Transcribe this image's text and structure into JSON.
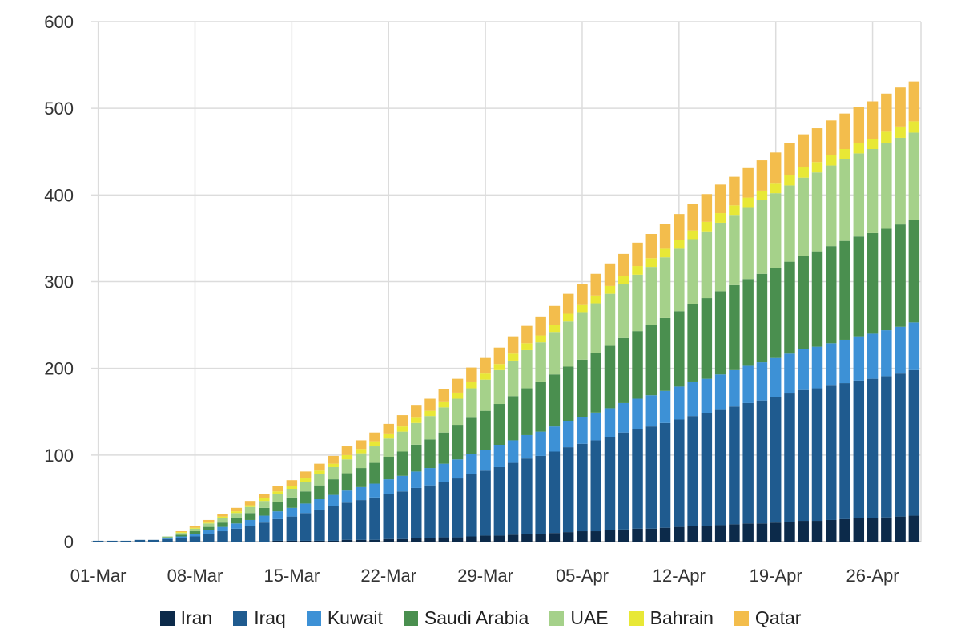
{
  "chart_data": {
    "type": "bar",
    "stacked": true,
    "title": "",
    "xlabel": "",
    "ylabel": "",
    "ylim": [
      0,
      600
    ],
    "yticks": [
      0,
      100,
      200,
      300,
      400,
      500,
      600
    ],
    "grid": true,
    "legend_position": "bottom",
    "x_tick_labels": [
      "01-Mar",
      "08-Mar",
      "15-Mar",
      "22-Mar",
      "29-Mar",
      "05-Apr",
      "12-Apr",
      "19-Apr",
      "26-Apr"
    ],
    "categories": [
      "01-Mar",
      "02-Mar",
      "03-Mar",
      "04-Mar",
      "05-Mar",
      "06-Mar",
      "07-Mar",
      "08-Mar",
      "09-Mar",
      "10-Mar",
      "11-Mar",
      "12-Mar",
      "13-Mar",
      "14-Mar",
      "15-Mar",
      "16-Mar",
      "17-Mar",
      "18-Mar",
      "19-Mar",
      "20-Mar",
      "21-Mar",
      "22-Mar",
      "23-Mar",
      "24-Mar",
      "25-Mar",
      "26-Mar",
      "27-Mar",
      "28-Mar",
      "29-Mar",
      "30-Mar",
      "31-Mar",
      "01-Apr",
      "02-Apr",
      "03-Apr",
      "04-Apr",
      "05-Apr",
      "06-Apr",
      "07-Apr",
      "08-Apr",
      "09-Apr",
      "10-Apr",
      "11-Apr",
      "12-Apr",
      "13-Apr",
      "14-Apr",
      "15-Apr",
      "16-Apr",
      "17-Apr",
      "18-Apr",
      "19-Apr",
      "20-Apr",
      "21-Apr",
      "22-Apr",
      "23-Apr",
      "24-Apr",
      "25-Apr",
      "26-Apr",
      "27-Apr",
      "28-Apr",
      "29-Apr"
    ],
    "series": [
      {
        "name": "Iran",
        "color": "#0c2a4a",
        "values": [
          0,
          0,
          0,
          0,
          0,
          0,
          0,
          0,
          0,
          0,
          0,
          0,
          0,
          1,
          1,
          1,
          1,
          1,
          2,
          2,
          2,
          3,
          3,
          4,
          4,
          5,
          5,
          6,
          7,
          7,
          8,
          9,
          9,
          10,
          11,
          12,
          12,
          13,
          14,
          15,
          15,
          16,
          17,
          18,
          18,
          19,
          20,
          21,
          21,
          22,
          23,
          24,
          24,
          25,
          26,
          27,
          27,
          28,
          29,
          30
        ]
      },
      {
        "name": "Iraq",
        "color": "#1f5b8f",
        "values": [
          1,
          1,
          1,
          2,
          2,
          3,
          4,
          6,
          9,
          12,
          15,
          18,
          22,
          25,
          28,
          32,
          36,
          40,
          43,
          46,
          49,
          52,
          55,
          58,
          61,
          64,
          68,
          72,
          75,
          79,
          83,
          87,
          90,
          94,
          98,
          101,
          105,
          108,
          112,
          115,
          118,
          121,
          124,
          127,
          130,
          133,
          136,
          139,
          142,
          145,
          148,
          151,
          153,
          155,
          157,
          159,
          161,
          163,
          165,
          168
        ]
      },
      {
        "name": "Kuwait",
        "color": "#3d91d6",
        "values": [
          0,
          0,
          0,
          0,
          0,
          1,
          2,
          3,
          4,
          5,
          6,
          7,
          8,
          9,
          10,
          11,
          12,
          13,
          14,
          15,
          16,
          17,
          18,
          19,
          20,
          21,
          22,
          23,
          24,
          25,
          26,
          27,
          28,
          29,
          30,
          31,
          32,
          33,
          34,
          35,
          36,
          37,
          38,
          39,
          40,
          41,
          42,
          43,
          44,
          45,
          46,
          47,
          48,
          49,
          50,
          51,
          52,
          53,
          54,
          55
        ]
      },
      {
        "name": "Saudi Arabia",
        "color": "#4a8f4f",
        "values": [
          0,
          0,
          0,
          0,
          0,
          1,
          2,
          3,
          4,
          5,
          6,
          8,
          9,
          11,
          12,
          14,
          16,
          18,
          20,
          22,
          24,
          26,
          28,
          31,
          33,
          36,
          39,
          42,
          45,
          48,
          51,
          54,
          57,
          60,
          63,
          66,
          69,
          72,
          75,
          78,
          81,
          84,
          87,
          90,
          93,
          96,
          98,
          100,
          102,
          104,
          106,
          108,
          110,
          112,
          114,
          115,
          116,
          117,
          118,
          118
        ]
      },
      {
        "name": "UAE",
        "color": "#a5d18a",
        "values": [
          0,
          0,
          0,
          0,
          0,
          1,
          2,
          3,
          4,
          5,
          6,
          7,
          8,
          9,
          10,
          11,
          13,
          14,
          16,
          17,
          19,
          21,
          23,
          25,
          27,
          29,
          31,
          34,
          36,
          39,
          41,
          44,
          46,
          49,
          52,
          54,
          57,
          60,
          62,
          65,
          67,
          70,
          72,
          75,
          77,
          79,
          81,
          83,
          85,
          86,
          88,
          90,
          91,
          93,
          94,
          96,
          97,
          99,
          100,
          101
        ]
      },
      {
        "name": "Bahrain",
        "color": "#e8e836",
        "values": [
          0,
          0,
          0,
          0,
          0,
          0,
          1,
          1,
          1,
          2,
          2,
          2,
          3,
          3,
          3,
          4,
          4,
          4,
          5,
          5,
          5,
          5,
          6,
          6,
          6,
          6,
          7,
          7,
          7,
          7,
          8,
          8,
          8,
          8,
          9,
          9,
          9,
          9,
          9,
          10,
          10,
          10,
          10,
          10,
          11,
          11,
          11,
          11,
          11,
          11,
          12,
          12,
          12,
          12,
          12,
          12,
          12,
          13,
          13,
          13
        ]
      },
      {
        "name": "Qatar",
        "color": "#f3bd4c",
        "values": [
          0,
          0,
          0,
          0,
          0,
          0,
          1,
          2,
          3,
          3,
          4,
          5,
          5,
          6,
          7,
          8,
          8,
          9,
          10,
          10,
          11,
          12,
          13,
          14,
          14,
          15,
          16,
          17,
          18,
          19,
          20,
          20,
          21,
          22,
          23,
          24,
          25,
          26,
          26,
          27,
          28,
          29,
          30,
          31,
          32,
          33,
          33,
          34,
          35,
          36,
          37,
          38,
          39,
          40,
          41,
          42,
          43,
          44,
          45,
          46
        ]
      }
    ]
  }
}
